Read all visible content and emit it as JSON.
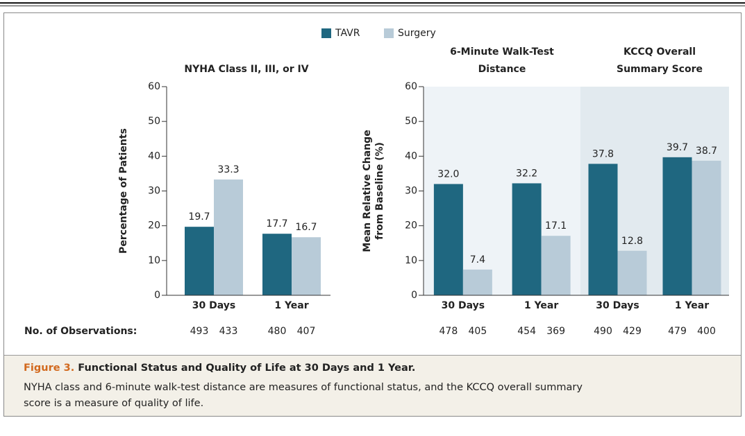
{
  "chart_data": [
    {
      "type": "bar",
      "title": "NYHA Class II, III, or IV",
      "ylabel": [
        "Percentage of Patients"
      ],
      "categories": [
        "30 Days",
        "1 Year"
      ],
      "series": [
        {
          "name": "TAVR",
          "color": "#1f6780",
          "values": [
            19.7,
            17.7
          ],
          "value_labels": [
            "19.7",
            "17.7"
          ],
          "n": [
            493,
            480
          ]
        },
        {
          "name": "Surgery",
          "color": "#b8cbd8",
          "values": [
            33.3,
            16.7
          ],
          "value_labels": [
            "33.3",
            "16.7"
          ],
          "n": [
            433,
            407
          ]
        }
      ],
      "ylim": [
        0,
        60
      ],
      "yticks": [
        0,
        10,
        20,
        30,
        40,
        50,
        60
      ]
    },
    {
      "type": "bar",
      "title": [
        "6-Minute Walk-Test",
        "Distance"
      ],
      "ylabel": [
        "Mean Relative Change",
        "from Baseline (%)"
      ],
      "categories": [
        "30 Days",
        "1 Year"
      ],
      "background": "#eef3f7",
      "series": [
        {
          "color": "#1f6780",
          "values": [
            32.0,
            32.2
          ],
          "value_labels": [
            "32.0",
            "32.2"
          ],
          "n": [
            478,
            454
          ]
        },
        {
          "color": "#b8cbd8",
          "values": [
            7.4,
            17.1
          ],
          "value_labels": [
            "7.4",
            "17.1"
          ],
          "n": [
            405,
            369
          ]
        }
      ],
      "ylim": [
        0,
        60
      ],
      "yticks": [
        0,
        10,
        20,
        30,
        40,
        50,
        60
      ]
    },
    {
      "type": "bar",
      "title": [
        "KCCQ Overall",
        "Summary Score"
      ],
      "categories": [
        "30 Days",
        "1 Year"
      ],
      "background": "#e2eaef",
      "series": [
        {
          "color": "#1f6780",
          "values": [
            37.8,
            39.7
          ],
          "value_labels": [
            "37.8",
            "39.7"
          ],
          "n": [
            490,
            479
          ]
        },
        {
          "color": "#b8cbd8",
          "values": [
            12.8,
            38.7
          ],
          "value_labels": [
            "12.8",
            "38.7"
          ],
          "n": [
            429,
            400
          ]
        }
      ],
      "ylim": [
        0,
        60
      ]
    }
  ],
  "observations_label": "No. of Observations:",
  "caption": {
    "label": "Figure 3.",
    "title": "Functional Status and Quality of Life at 30 Days and 1 Year.",
    "text": "NYHA class and 6-minute walk-test distance are measures of functional status, and the KCCQ overall summary score is a measure of quality of life."
  }
}
